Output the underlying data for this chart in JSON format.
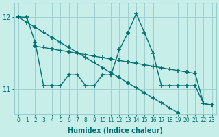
{
  "xlabel": "Humidex (Indice chaleur)",
  "bg_color": "#c8eeea",
  "grid_color": "#99cccc",
  "line_color": "#007070",
  "ylim": [
    10.65,
    12.2
  ],
  "yticks": [
    11,
    12
  ],
  "xlim": [
    -0.5,
    23.5
  ],
  "line1_x": [
    0,
    1,
    2,
    3,
    4,
    5,
    6,
    7,
    8,
    9,
    10,
    11,
    12,
    13,
    14,
    15,
    16,
    17,
    18,
    19,
    20,
    21,
    22,
    23
  ],
  "line1_y": [
    12.0,
    11.93,
    11.86,
    11.79,
    11.72,
    11.65,
    11.58,
    11.51,
    11.44,
    11.37,
    11.3,
    11.23,
    11.16,
    11.09,
    11.02,
    10.95,
    10.88,
    10.81,
    10.74,
    10.67,
    10.6,
    10.6,
    10.6,
    10.6
  ],
  "line2_x": [
    2,
    3,
    4,
    5,
    6,
    7,
    8,
    9,
    10,
    11,
    12,
    13,
    14,
    15,
    16,
    17,
    18,
    19,
    20,
    21,
    22,
    23
  ],
  "line2_y": [
    11.6,
    11.58,
    11.56,
    11.54,
    11.52,
    11.5,
    11.48,
    11.46,
    11.44,
    11.42,
    11.4,
    11.38,
    11.36,
    11.34,
    11.32,
    11.3,
    11.28,
    11.26,
    11.24,
    11.22,
    10.8,
    10.78
  ],
  "line3_x": [
    0,
    1,
    2,
    3,
    4,
    5,
    6,
    7,
    8,
    9,
    10,
    11,
    12,
    13,
    14,
    15,
    16,
    17,
    18,
    19,
    20,
    21,
    22,
    23
  ],
  "line3_y": [
    12.0,
    12.0,
    11.65,
    11.05,
    11.05,
    11.05,
    11.2,
    11.2,
    11.05,
    11.05,
    11.2,
    11.2,
    11.55,
    11.78,
    12.05,
    11.78,
    11.5,
    11.05,
    11.05,
    11.05,
    11.05,
    11.05,
    10.8,
    10.78
  ],
  "marker": "+",
  "markersize": 4,
  "markeredgewidth": 1.2,
  "linewidth": 1.0,
  "xlabel_fontsize": 7,
  "tick_fontsize": 5.5,
  "ytick_fontsize": 7
}
